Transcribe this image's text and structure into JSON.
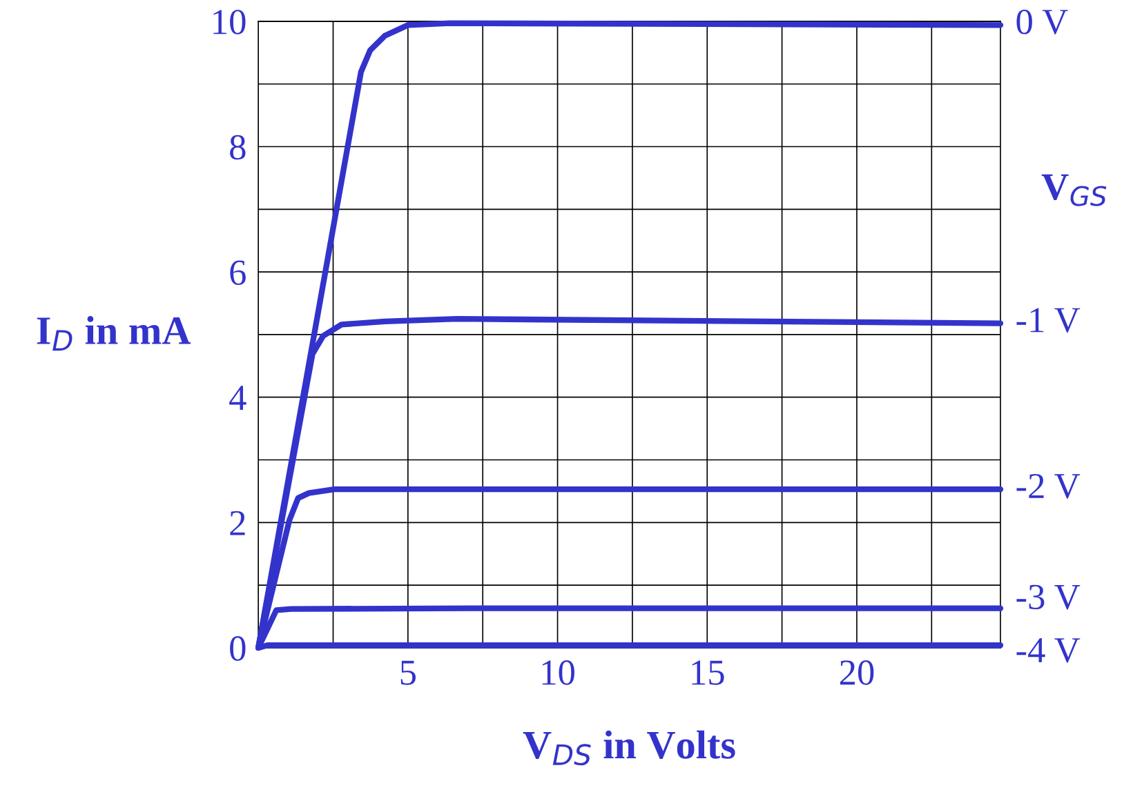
{
  "chart_data": {
    "type": "line",
    "xlabel": "V$_{DS}$ in Volts",
    "ylabel": "I$_{D}$ in mA",
    "legend_title": "V$_{GS}$",
    "xlim": [
      0,
      24.8
    ],
    "ylim": [
      0,
      10
    ],
    "xticks": [
      {
        "value": 2.5,
        "label": null
      },
      5,
      {
        "value": 7.5,
        "label": null
      },
      10,
      {
        "value": 12.5,
        "label": null
      },
      15,
      {
        "value": 17.5,
        "label": null
      },
      20,
      {
        "value": 22.5,
        "label": null
      }
    ],
    "yticks": [
      0,
      {
        "value": 1,
        "label": null
      },
      2,
      {
        "value": 3,
        "label": null
      },
      4,
      {
        "value": 5,
        "label": null
      },
      6,
      {
        "value": 7,
        "label": null
      },
      8,
      {
        "value": 9,
        "label": null
      },
      10
    ],
    "grid": true,
    "legend": false,
    "marker": "none",
    "line_style": "solid",
    "series": [
      {
        "name": "0 V",
        "color": "#3333cc",
        "x": [
          0,
          3.43,
          3.74,
          4.23,
          5.0,
          6.4,
          24.8
        ],
        "values": [
          0,
          9.19,
          9.54,
          9.77,
          9.94,
          9.97,
          9.94
        ]
      },
      {
        "name": "-1 V",
        "color": "#3333cc",
        "x": [
          0,
          1.81,
          2.17,
          2.78,
          4.23,
          6.64,
          24.8
        ],
        "values": [
          0,
          4.69,
          4.98,
          5.16,
          5.21,
          5.25,
          5.18
        ]
      },
      {
        "name": "-2 V",
        "color": "#3333cc",
        "x": [
          0,
          1.04,
          1.33,
          1.69,
          2.54,
          24.8
        ],
        "values": [
          0,
          2.04,
          2.39,
          2.47,
          2.53,
          2.53
        ]
      },
      {
        "name": "-3 V",
        "color": "#3333cc",
        "x": [
          0,
          0.6,
          1.09,
          7.0,
          24.8
        ],
        "values": [
          0,
          0.6,
          0.62,
          0.63,
          0.63
        ]
      },
      {
        "name": "-4 V",
        "color": "#3333cc",
        "x": [
          0,
          0.3,
          24.8
        ],
        "values": [
          0,
          0.04,
          0.04
        ]
      }
    ]
  }
}
